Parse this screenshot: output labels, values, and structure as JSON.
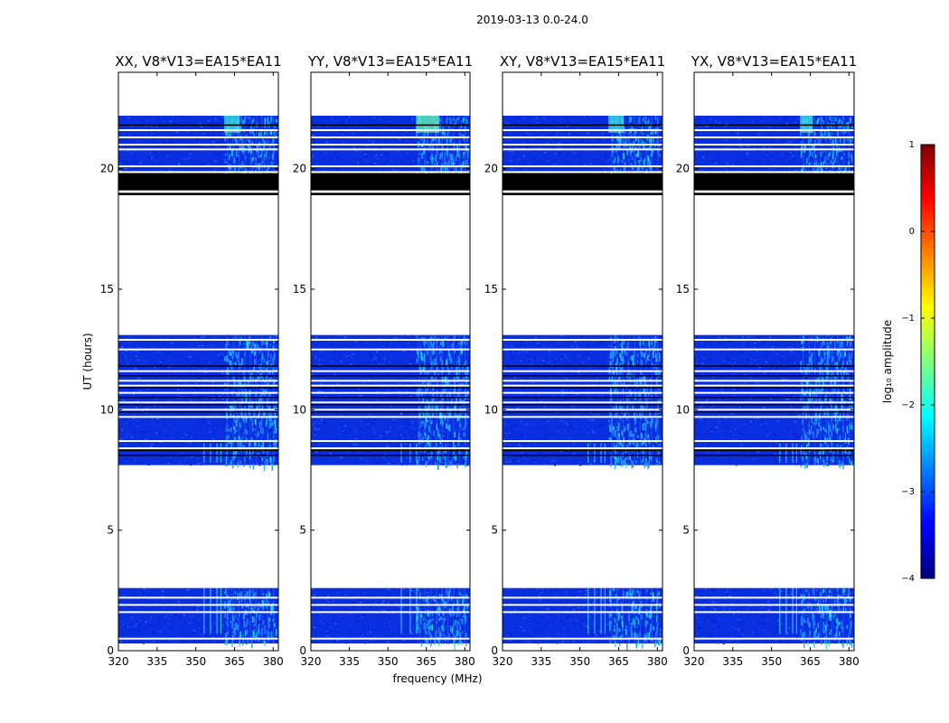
{
  "figure": {
    "suptitle": "2019-03-13 0.0-24.0"
  },
  "chart_data": [
    {
      "type": "heatmap",
      "title": "XX, V8*V13=EA15*EA11",
      "xlabel": "",
      "ylabel": "UT (hours)",
      "xlim": [
        320,
        382
      ],
      "ylim": [
        0,
        24
      ],
      "xticks": [
        320,
        335,
        350,
        365,
        380
      ],
      "yticks": [
        0,
        5,
        10,
        15,
        20
      ],
      "bright_band_MHz": [
        361,
        381
      ],
      "peak_band_MHz": [
        361,
        367
      ],
      "spike_lines_MHz": [
        353,
        355.5,
        358,
        359.5
      ],
      "data_blocks_hours": [
        [
          0.3,
          2.6
        ],
        [
          7.7,
          13.1
        ],
        [
          19.5,
          22.2
        ]
      ],
      "blank_row_hours": [
        0.5,
        1.6,
        1.9,
        2.2,
        8.4,
        8.7,
        9.7,
        10.0,
        10.3,
        10.7,
        11.0,
        11.2,
        11.6,
        12.5,
        12.9,
        20.1,
        20.8,
        21.0,
        21.3,
        21.6
      ]
    },
    {
      "type": "heatmap",
      "title": "YY, V8*V13=EA15*EA11",
      "xlabel": "frequency (MHz)",
      "ylabel": "",
      "xlim": [
        320,
        382
      ],
      "ylim": [
        0,
        24
      ],
      "xticks": [
        320,
        335,
        350,
        365,
        380
      ],
      "yticks": [
        0,
        5,
        10,
        15,
        20
      ],
      "bright_band_MHz": [
        361,
        381
      ],
      "peak_band_MHz": [
        361,
        370
      ],
      "spike_lines_MHz": [
        355,
        358.5,
        361
      ],
      "data_blocks_hours": [
        [
          0.3,
          2.6
        ],
        [
          7.7,
          13.1
        ],
        [
          19.5,
          22.2
        ]
      ],
      "blank_row_hours": [
        0.5,
        1.6,
        1.9,
        2.2,
        8.4,
        8.7,
        9.7,
        10.0,
        10.3,
        10.7,
        11.0,
        11.2,
        11.6,
        12.5,
        12.9,
        20.1,
        20.8,
        21.0,
        21.3,
        21.6
      ]
    },
    {
      "type": "heatmap",
      "title": "XY, V8*V13=EA15*EA11",
      "xlabel": "",
      "ylabel": "",
      "xlim": [
        320,
        382
      ],
      "ylim": [
        0,
        24
      ],
      "xticks": [
        320,
        335,
        350,
        365,
        380
      ],
      "yticks": [
        0,
        5,
        10,
        15,
        20
      ],
      "bright_band_MHz": [
        361,
        381
      ],
      "peak_band_MHz": [
        361,
        367
      ],
      "spike_lines_MHz": [
        353,
        355.5,
        358,
        359.5
      ],
      "data_blocks_hours": [
        [
          0.3,
          2.6
        ],
        [
          7.7,
          13.1
        ],
        [
          19.5,
          22.2
        ]
      ],
      "blank_row_hours": [
        0.5,
        1.6,
        1.9,
        2.2,
        8.4,
        8.7,
        9.7,
        10.0,
        10.3,
        10.7,
        11.0,
        11.2,
        11.6,
        12.5,
        12.9,
        20.1,
        20.8,
        21.0,
        21.3,
        21.6
      ]
    },
    {
      "type": "heatmap",
      "title": "YX, V8*V13=EA15*EA11",
      "xlabel": "",
      "ylabel": "",
      "xlim": [
        320,
        382
      ],
      "ylim": [
        0,
        24
      ],
      "xticks": [
        320,
        335,
        350,
        365,
        380
      ],
      "yticks": [
        0,
        5,
        10,
        15,
        20
      ],
      "bright_band_MHz": [
        361,
        381
      ],
      "peak_band_MHz": [
        361,
        366
      ],
      "spike_lines_MHz": [
        353,
        355.5,
        358,
        359.5
      ],
      "data_blocks_hours": [
        [
          0.3,
          2.6
        ],
        [
          7.7,
          13.1
        ],
        [
          19.5,
          22.2
        ]
      ],
      "blank_row_hours": [
        0.5,
        1.6,
        1.9,
        2.2,
        8.4,
        8.7,
        9.7,
        10.0,
        10.3,
        10.7,
        11.0,
        11.2,
        11.6,
        12.5,
        12.9,
        20.1,
        20.8,
        21.0,
        21.3,
        21.6
      ]
    }
  ],
  "shared": {
    "flagged_black_hours": [
      [
        19.1,
        19.8
      ],
      [
        18.9,
        19.0
      ]
    ],
    "colormap": [
      "#00007f",
      "#0000ff",
      "#007fff",
      "#00ffff",
      "#7fff7f",
      "#ffff00",
      "#ff7f00",
      "#ff0000",
      "#7f0000"
    ],
    "colorbar": {
      "label": "log₁₀ amplitude",
      "min": -4,
      "max": 1,
      "ticks": [
        "1",
        "0",
        "−1",
        "−2",
        "−3",
        "−4"
      ]
    }
  }
}
